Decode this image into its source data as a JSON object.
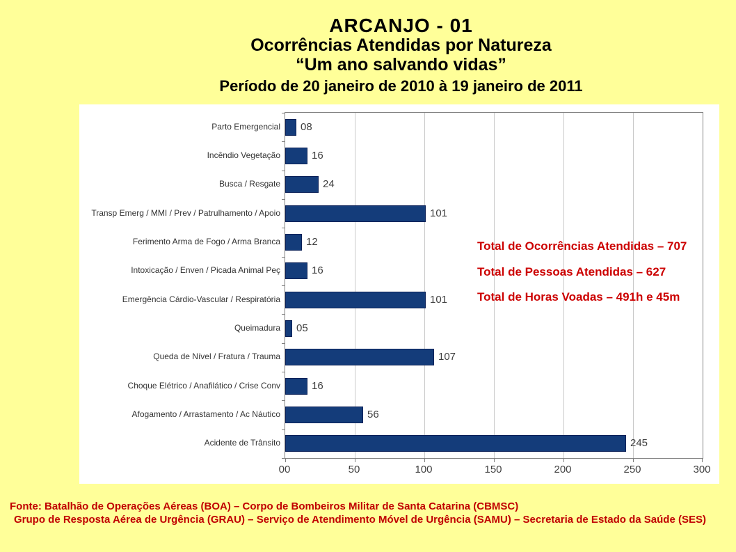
{
  "chart_data": {
    "type": "bar",
    "orientation": "horizontal",
    "title_lines": [
      "ARCANJO - 01",
      "Ocorrências Atendidas por Natureza",
      "“Um ano salvando vidas”"
    ],
    "subtitle": "Período de 20 janeiro de 2010 à 19 janeiro de 2011",
    "categories": [
      "Parto Emergencial",
      "Incêndio Vegetação",
      "Busca / Resgate",
      "Transp Emerg / MMI / Prev / Patrulhamento / Apoio",
      "Ferimento Arma de Fogo / Arma Branca",
      "Intoxicação / Enven / Picada Animal Peç",
      "Emergência Cárdio-Vascular / Respiratória",
      "Queimadura",
      "Queda de Nível / Fratura / Trauma",
      "Choque Elétrico / Anafilático / Crise Conv",
      "Afogamento / Arrastamento / Ac Náutico",
      "Acidente de Trânsito"
    ],
    "values": [
      8,
      16,
      24,
      101,
      12,
      16,
      101,
      5,
      107,
      16,
      56,
      245
    ],
    "value_labels": [
      "08",
      "16",
      "24",
      "101",
      "12",
      "16",
      "101",
      "05",
      "107",
      "16",
      "56",
      "245"
    ],
    "xlim": [
      0,
      300
    ],
    "x_tick_labels": [
      "00",
      "50",
      "100",
      "150",
      "200",
      "250",
      "300"
    ],
    "x_tick_step": 50,
    "grid": true,
    "legend": false,
    "annotations": [
      "Total de Ocorrências Atendidas – 707",
      "Total de Pessoas Atendidas – 627",
      "Total de Horas Voadas – 491h e 45m"
    ]
  },
  "source": {
    "line1": "Fonte: Batalhão de Operações Aéreas (BOA) – Corpo de Bombeiros Militar de Santa Catarina (CBMSC)",
    "line2": "Grupo de Resposta Aérea de Urgência (GRAU) – Serviço de Atendimento Móvel de Urgência (SAMU) – Secretaria de Estado da Saúde (SES)"
  },
  "colors": {
    "background": "#ffff99",
    "panel": "#ffffff",
    "bar_fill": "#143c7a",
    "bar_border": "#0b2158",
    "gridline": "#c9c9c9",
    "axis": "#808080",
    "annotation_red": "#cc0000",
    "footer_red": "#c00000"
  }
}
